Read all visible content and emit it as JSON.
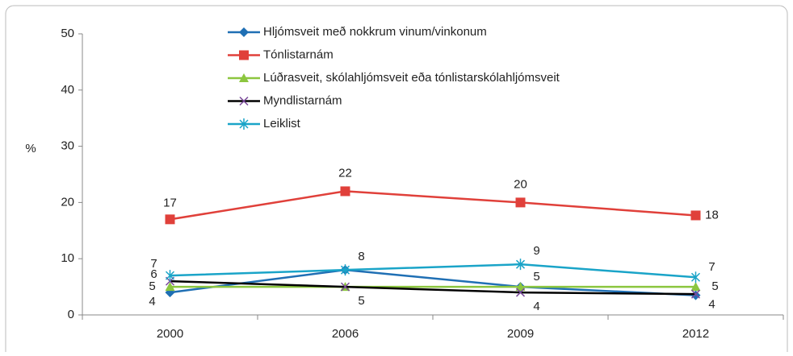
{
  "chart_data": {
    "type": "line",
    "y_label": "%",
    "categories": [
      "2000",
      "2006",
      "2009",
      "2012"
    ],
    "series": [
      {
        "name": "Hljómsveit með nokkrum vinum/vinkonum",
        "color": "#1f6fb4",
        "marker": "diamond",
        "values": [
          4,
          8,
          5,
          3.5
        ],
        "value_labels": [
          "4",
          "8",
          null,
          "4"
        ]
      },
      {
        "name": "Tónlistarnám",
        "color": "#e0403a",
        "marker": "square",
        "values": [
          17,
          22,
          20,
          17.7
        ],
        "value_labels": [
          "17",
          "22",
          "20",
          "18"
        ]
      },
      {
        "name": "Lúðrasveit, skólahljómsveit eða tónlistarskólahljómsveit",
        "color": "#8cc63f",
        "marker": "triangle",
        "values": [
          5,
          5,
          5,
          5
        ],
        "value_labels": [
          "5",
          "5",
          "5",
          "5"
        ]
      },
      {
        "name": "Myndlistarnám",
        "color": "#000000",
        "marker": "x",
        "values": [
          6,
          5,
          4,
          3.7
        ],
        "value_labels": [
          "6",
          null,
          "4",
          null
        ]
      },
      {
        "name": "Leiklist",
        "color": "#1aa4c8",
        "marker": "star",
        "values": [
          7,
          8,
          9,
          6.7
        ],
        "value_labels": [
          "7",
          null,
          "9",
          "7"
        ]
      }
    ],
    "ylim": [
      0,
      50
    ],
    "yticks": [
      0,
      10,
      20,
      30,
      40,
      50
    ],
    "grid": false
  }
}
